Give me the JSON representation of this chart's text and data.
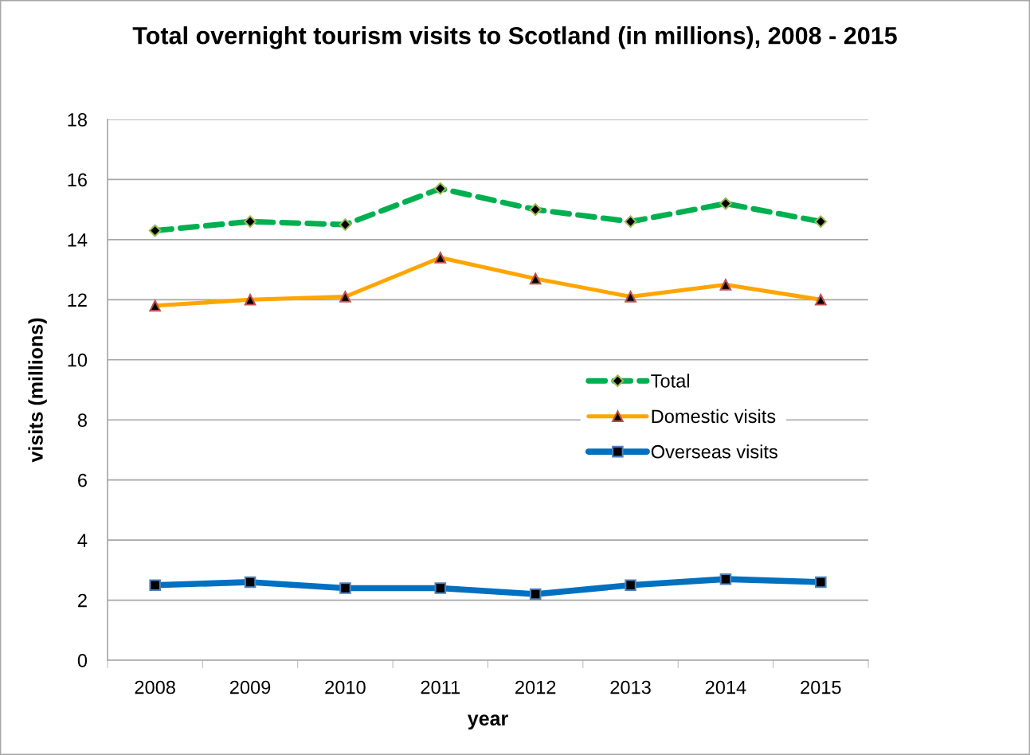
{
  "chart_data": {
    "type": "line",
    "title": "Total overnight tourism visits to Scotland (in millions), 2008 - 2015",
    "xlabel": "year",
    "ylabel": "visits (millions)",
    "categories": [
      "2008",
      "2009",
      "2010",
      "2011",
      "2012",
      "2013",
      "2014",
      "2015"
    ],
    "series": [
      {
        "name": "Total",
        "color": "#00b050",
        "values": [
          14.3,
          14.6,
          14.5,
          15.7,
          15.0,
          14.6,
          15.2,
          14.6
        ],
        "line_style": "dashed",
        "marker": "diamond"
      },
      {
        "name": "Domestic visits",
        "color": "#ffa500",
        "values": [
          11.8,
          12.0,
          12.1,
          13.4,
          12.7,
          12.1,
          12.5,
          12.0
        ],
        "line_style": "solid",
        "marker": "triangle"
      },
      {
        "name": "Overseas visits",
        "color": "#0070c0",
        "values": [
          2.5,
          2.6,
          2.4,
          2.4,
          2.2,
          2.5,
          2.7,
          2.6
        ],
        "line_style": "solid",
        "marker": "square"
      }
    ],
    "ylim": [
      0,
      18
    ],
    "yticks": [
      0,
      2,
      4,
      6,
      8,
      10,
      12,
      14,
      16,
      18
    ],
    "grid": "y",
    "legend": "right"
  }
}
